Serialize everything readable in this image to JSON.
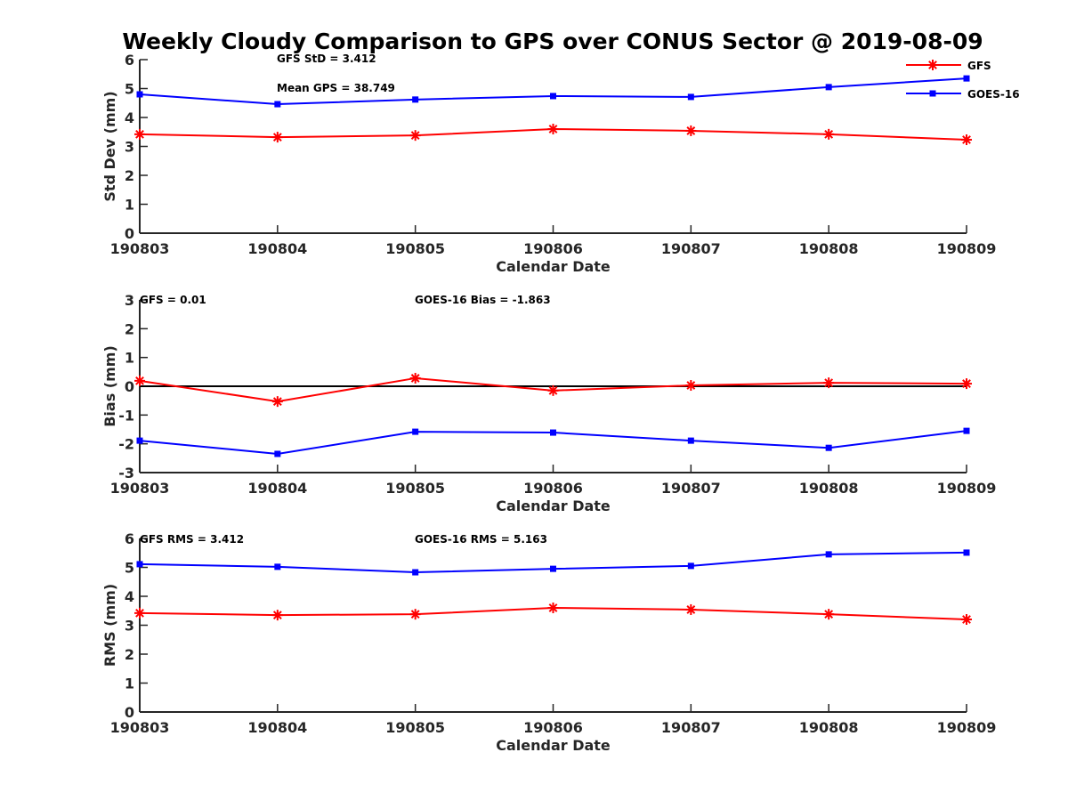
{
  "chart_data": {
    "type": "line",
    "title": "Weekly Cloudy Comparison to GPS over CONUS Sector @ 2019-08-09",
    "legend": {
      "placement": "top-right",
      "entries": [
        {
          "name": "GFS",
          "color": "#ff0000",
          "marker": "asterisk"
        },
        {
          "name": "GOES-16",
          "color": "#0000ff",
          "marker": "square"
        }
      ]
    },
    "panels": [
      {
        "id": "stddev",
        "ylabel": "Std Dev (mm)",
        "xlabel": "Calendar Date",
        "categories": [
          "190803",
          "190804",
          "190805",
          "190806",
          "190807",
          "190808",
          "190809"
        ],
        "ylim": [
          0,
          6
        ],
        "yticks": [
          "0",
          "1",
          "2",
          "3",
          "4",
          "5",
          "6"
        ],
        "zero_line": false,
        "annotations": [
          {
            "text": "GFS StD = 3.412",
            "pos": "top-left-center"
          },
          {
            "text": "Mean GPS = 38.749",
            "pos": "upper-left-center"
          }
        ],
        "series": [
          {
            "name": "GFS",
            "color": "#ff0000",
            "marker": "asterisk",
            "values": [
              3.42,
              3.32,
              3.38,
              3.6,
              3.54,
              3.42,
              3.23
            ]
          },
          {
            "name": "GOES-16",
            "color": "#0000ff",
            "marker": "square",
            "values": [
              4.8,
              4.46,
              4.62,
              4.74,
              4.71,
              5.05,
              5.35
            ]
          }
        ]
      },
      {
        "id": "bias",
        "ylabel": "Bias (mm)",
        "xlabel": "Calendar Date",
        "categories": [
          "190803",
          "190804",
          "190805",
          "190806",
          "190807",
          "190808",
          "190809"
        ],
        "ylim": [
          -3,
          3
        ],
        "yticks": [
          "-3",
          "-2",
          "-1",
          "0",
          "1",
          "2",
          "3"
        ],
        "zero_line": true,
        "annotations": [
          {
            "text": "GFS = 0.01",
            "pos": "top-left"
          },
          {
            "text": "GOES-16 Bias  = -1.863",
            "pos": "top-center"
          }
        ],
        "series": [
          {
            "name": "GFS",
            "color": "#ff0000",
            "marker": "asterisk",
            "values": [
              0.19,
              -0.53,
              0.28,
              -0.15,
              0.03,
              0.12,
              0.09
            ]
          },
          {
            "name": "GOES-16",
            "color": "#0000ff",
            "marker": "square",
            "values": [
              -1.89,
              -2.35,
              -1.58,
              -1.61,
              -1.89,
              -2.14,
              -1.55
            ]
          }
        ]
      },
      {
        "id": "rms",
        "ylabel": "RMS (mm)",
        "xlabel": "Calendar Date",
        "categories": [
          "190803",
          "190804",
          "190805",
          "190806",
          "190807",
          "190808",
          "190809"
        ],
        "ylim": [
          0,
          6
        ],
        "yticks": [
          "0",
          "1",
          "2",
          "3",
          "4",
          "5",
          "6"
        ],
        "zero_line": false,
        "annotations": [
          {
            "text": "GFS RMS = 3.412",
            "pos": "top-left"
          },
          {
            "text": "GOES-16 RMS = 5.163",
            "pos": "top-center"
          }
        ],
        "series": [
          {
            "name": "GFS",
            "color": "#ff0000",
            "marker": "asterisk",
            "values": [
              3.42,
              3.35,
              3.38,
              3.6,
              3.54,
              3.38,
              3.2
            ]
          },
          {
            "name": "GOES-16",
            "color": "#0000ff",
            "marker": "square",
            "values": [
              5.11,
              5.02,
              4.83,
              4.95,
              5.05,
              5.45,
              5.51
            ]
          }
        ]
      }
    ]
  }
}
